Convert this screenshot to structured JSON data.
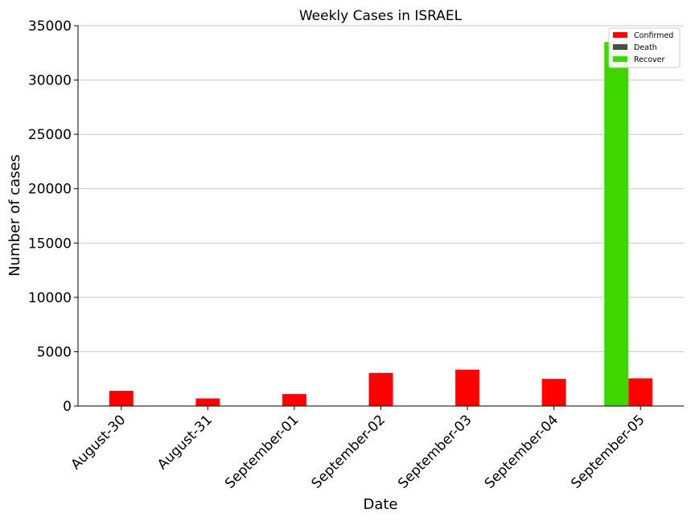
{
  "chart_data": {
    "type": "bar",
    "title": "Weekly Cases in ISRAEL",
    "xlabel": "Date",
    "ylabel": "Number of cases",
    "categories": [
      "August-30",
      "August-31",
      "September-01",
      "September-02",
      "September-03",
      "September-04",
      "September-05"
    ],
    "ylim": [
      0,
      35000
    ],
    "yticks": [
      0,
      5000,
      10000,
      15000,
      20000,
      25000,
      30000,
      35000
    ],
    "grid": "y",
    "legend_position": "top-right",
    "series": [
      {
        "name": "Confirmed",
        "color": "#ff0000",
        "values": [
          1400,
          700,
          1100,
          3050,
          3350,
          2500,
          2550
        ]
      },
      {
        "name": "Death",
        "color": "#4d4d4d",
        "values": [
          0,
          0,
          0,
          0,
          0,
          0,
          0
        ]
      },
      {
        "name": "Recover",
        "color": "#3fd600",
        "values": [
          0,
          0,
          0,
          0,
          0,
          0,
          33500
        ]
      }
    ]
  }
}
